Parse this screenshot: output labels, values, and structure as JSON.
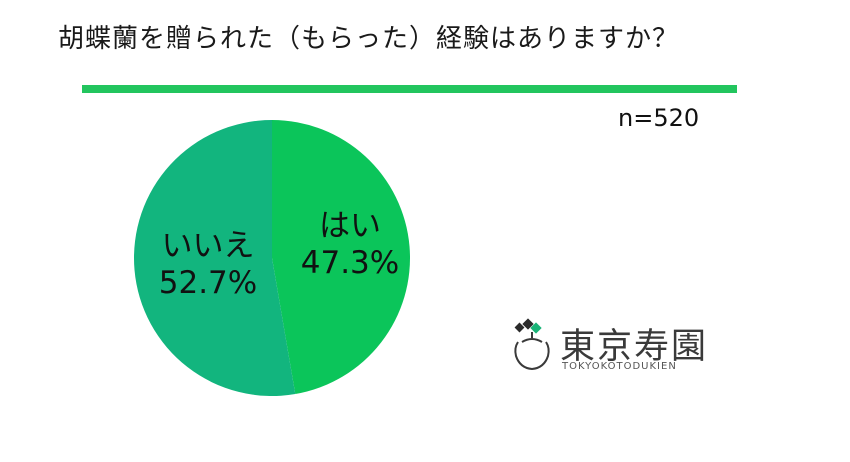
{
  "title": "胡蝶蘭を贈られた（もらった）経験はありますか？",
  "sample_size": "n=520",
  "colors": {
    "accent_rule": "#22c55e",
    "yes": "#0bc55a",
    "no": "#12b57e"
  },
  "chart_data": {
    "type": "pie",
    "slices": [
      {
        "label": "はい",
        "value": 47.3,
        "value_text": "47.3%",
        "color": "#0bc55a"
      },
      {
        "label": "いいえ",
        "value": 52.7,
        "value_text": "52.7%",
        "color": "#12b57e"
      }
    ],
    "start": "top",
    "direction": "clockwise"
  },
  "logo": {
    "name": "東京寿園",
    "romanized": "TOKYOKOTODUKIEN",
    "icon": "orchid-pot-icon"
  }
}
